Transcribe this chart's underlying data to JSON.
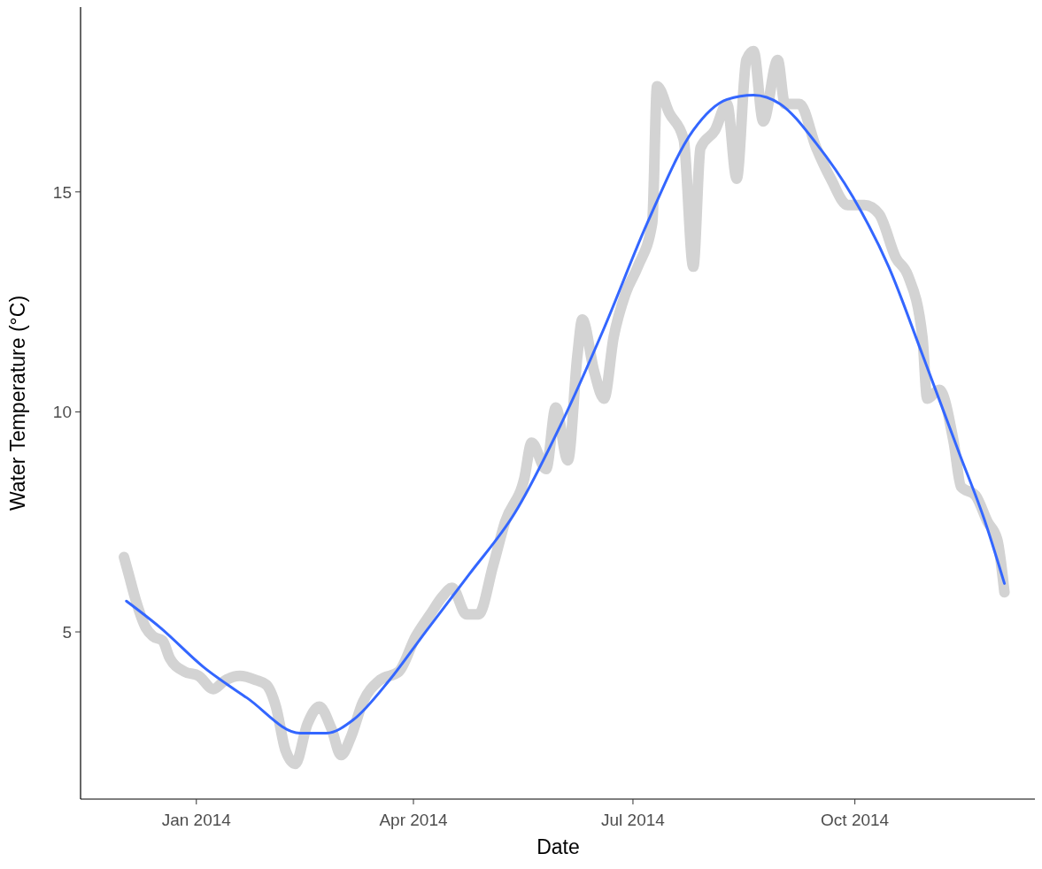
{
  "chart_data": {
    "type": "line",
    "xlabel": "Date",
    "ylabel": "Water Temperature (°C)",
    "xlim": [
      "2013-11-14",
      "2014-12-15"
    ],
    "ylim": [
      1.2,
      19.2
    ],
    "xticks": [
      {
        "value": "2014-01-01",
        "label": "Jan 2014"
      },
      {
        "value": "2014-04-01",
        "label": "Apr 2014"
      },
      {
        "value": "2014-07-01",
        "label": "Jul 2014"
      },
      {
        "value": "2014-10-01",
        "label": "Oct 2014"
      }
    ],
    "yticks": [
      5,
      10,
      15
    ],
    "grid": false,
    "marker": "none",
    "line_style": "solid",
    "series": [
      {
        "color": "#d3d3d3",
        "x": [
          "2013-12-02",
          "2013-12-04",
          "2013-12-07",
          "2013-12-11",
          "2013-12-14",
          "2013-12-18",
          "2013-12-21",
          "2013-12-27",
          "2014-01-02",
          "2014-01-08",
          "2014-01-13",
          "2014-01-19",
          "2014-01-26",
          "2014-01-30",
          "2014-02-03",
          "2014-02-07",
          "2014-02-11",
          "2014-02-16",
          "2014-02-21",
          "2014-02-26",
          "2014-03-02",
          "2014-03-06",
          "2014-03-11",
          "2014-03-18",
          "2014-03-26",
          "2014-04-02",
          "2014-04-08",
          "2014-04-13",
          "2014-04-17",
          "2014-04-23",
          "2014-04-28",
          "2014-05-04",
          "2014-05-09",
          "2014-05-17",
          "2014-05-20",
          "2014-05-26",
          "2014-05-30",
          "2014-06-04",
          "2014-06-08",
          "2014-06-10",
          "2014-06-15",
          "2014-06-19",
          "2014-06-23",
          "2014-06-28",
          "2014-07-03",
          "2014-07-09",
          "2014-07-11",
          "2014-07-16",
          "2014-07-22",
          "2014-07-26",
          "2014-07-29",
          "2014-08-04",
          "2014-08-09",
          "2014-08-13",
          "2014-08-17",
          "2014-08-20",
          "2014-08-24",
          "2014-08-30",
          "2014-09-02",
          "2014-09-08",
          "2014-09-15",
          "2014-09-21",
          "2014-09-28",
          "2014-10-05",
          "2014-10-11",
          "2014-10-18",
          "2014-10-23",
          "2014-10-29",
          "2014-10-31",
          "2014-11-05",
          "2014-11-11",
          "2014-11-14",
          "2014-11-20",
          "2014-11-25",
          "2014-11-29",
          "2014-12-02"
        ],
        "values": [
          6.7,
          6.3,
          5.7,
          5.1,
          4.9,
          4.8,
          4.4,
          4.1,
          4.0,
          3.7,
          3.9,
          4.0,
          3.9,
          3.8,
          3.3,
          2.3,
          2.0,
          2.9,
          3.3,
          2.8,
          2.2,
          2.6,
          3.4,
          3.9,
          4.1,
          4.9,
          5.4,
          5.8,
          6.0,
          5.4,
          5.4,
          6.5,
          7.5,
          8.5,
          9.3,
          8.7,
          10.1,
          8.9,
          11.3,
          12.1,
          10.9,
          10.3,
          11.7,
          12.7,
          13.3,
          14.3,
          17.4,
          16.8,
          16.2,
          13.3,
          16.0,
          16.4,
          17.0,
          15.3,
          18.0,
          18.2,
          16.6,
          18.0,
          17.0,
          17.0,
          16.0,
          15.3,
          14.7,
          14.7,
          14.5,
          13.5,
          13.1,
          11.7,
          10.3,
          10.5,
          9.3,
          8.3,
          8.1,
          7.5,
          7.1,
          5.9
        ]
      },
      {
        "color": "#3366ff",
        "x": [
          "2013-12-03",
          "2013-12-17",
          "2014-01-04",
          "2014-01-22",
          "2014-02-13",
          "2014-02-24",
          "2014-03-07",
          "2014-03-22",
          "2014-04-06",
          "2014-04-24",
          "2014-05-13",
          "2014-06-01",
          "2014-06-19",
          "2014-07-07",
          "2014-07-26",
          "2014-08-09",
          "2014-08-20",
          "2014-08-31",
          "2014-09-15",
          "2014-09-30",
          "2014-10-15",
          "2014-10-29",
          "2014-11-13",
          "2014-11-24",
          "2014-12-02"
        ],
        "values": [
          5.7,
          5.1,
          4.2,
          3.5,
          2.7,
          2.7,
          3.0,
          3.9,
          5.0,
          6.3,
          7.7,
          9.7,
          11.9,
          14.3,
          16.4,
          17.1,
          17.2,
          17.0,
          16.1,
          14.9,
          13.3,
          11.3,
          9.1,
          7.5,
          6.1
        ]
      }
    ]
  }
}
